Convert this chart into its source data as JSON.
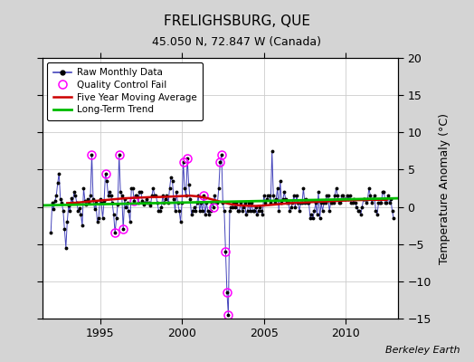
{
  "title": "FRELIGHSBURG, QUE",
  "subtitle": "45.050 N, 72.847 W (Canada)",
  "ylabel": "Temperature Anomaly (°C)",
  "credit": "Berkeley Earth",
  "xlim": [
    1991.5,
    2013.2
  ],
  "ylim": [
    -15,
    20
  ],
  "yticks": [
    -15,
    -10,
    -5,
    0,
    5,
    10,
    15,
    20
  ],
  "xticks": [
    1995,
    2000,
    2005,
    2010
  ],
  "bg_outer": "#d4d4d4",
  "bg_inner": "#ffffff",
  "grid_color": "#cccccc",
  "raw_color": "#4444bb",
  "moving_avg_color": "#cc0000",
  "trend_color": "#00bb00",
  "qc_color": "#ff00ff",
  "raw_data": [
    [
      1992.0,
      -3.5
    ],
    [
      1992.083,
      0.5
    ],
    [
      1992.167,
      -0.3
    ],
    [
      1992.25,
      0.8
    ],
    [
      1992.333,
      1.5
    ],
    [
      1992.417,
      3.2
    ],
    [
      1992.5,
      4.5
    ],
    [
      1992.583,
      1.0
    ],
    [
      1992.667,
      0.5
    ],
    [
      1992.75,
      -0.5
    ],
    [
      1992.833,
      -3.0
    ],
    [
      1992.917,
      -5.5
    ],
    [
      1993.0,
      -2.0
    ],
    [
      1993.083,
      0.2
    ],
    [
      1993.167,
      -0.5
    ],
    [
      1993.25,
      1.2
    ],
    [
      1993.333,
      0.5
    ],
    [
      1993.417,
      2.0
    ],
    [
      1993.5,
      1.5
    ],
    [
      1993.583,
      0.5
    ],
    [
      1993.667,
      -0.5
    ],
    [
      1993.75,
      -0.2
    ],
    [
      1993.833,
      -1.0
    ],
    [
      1993.917,
      -2.5
    ],
    [
      1994.0,
      2.5
    ],
    [
      1994.083,
      0.8
    ],
    [
      1994.167,
      0.3
    ],
    [
      1994.25,
      1.0
    ],
    [
      1994.333,
      0.5
    ],
    [
      1994.417,
      1.5
    ],
    [
      1994.5,
      7.0
    ],
    [
      1994.583,
      1.0
    ],
    [
      1994.667,
      -0.3
    ],
    [
      1994.75,
      0.5
    ],
    [
      1994.833,
      -2.0
    ],
    [
      1994.917,
      -1.5
    ],
    [
      1995.0,
      1.0
    ],
    [
      1995.083,
      0.5
    ],
    [
      1995.167,
      -1.5
    ],
    [
      1995.25,
      0.8
    ],
    [
      1995.333,
      4.5
    ],
    [
      1995.417,
      3.5
    ],
    [
      1995.5,
      1.5
    ],
    [
      1995.583,
      2.0
    ],
    [
      1995.667,
      1.5
    ],
    [
      1995.75,
      0.5
    ],
    [
      1995.833,
      -1.0
    ],
    [
      1995.917,
      -3.5
    ],
    [
      1996.0,
      -1.5
    ],
    [
      1996.083,
      0.3
    ],
    [
      1996.167,
      7.0
    ],
    [
      1996.25,
      2.0
    ],
    [
      1996.333,
      1.5
    ],
    [
      1996.417,
      -3.0
    ],
    [
      1996.5,
      1.0
    ],
    [
      1996.583,
      0.0
    ],
    [
      1996.667,
      0.5
    ],
    [
      1996.75,
      -0.5
    ],
    [
      1996.833,
      -2.0
    ],
    [
      1996.917,
      2.5
    ],
    [
      1997.0,
      2.5
    ],
    [
      1997.083,
      0.8
    ],
    [
      1997.167,
      1.5
    ],
    [
      1997.25,
      1.5
    ],
    [
      1997.333,
      0.5
    ],
    [
      1997.417,
      2.0
    ],
    [
      1997.5,
      2.0
    ],
    [
      1997.583,
      0.8
    ],
    [
      1997.667,
      0.3
    ],
    [
      1997.75,
      0.5
    ],
    [
      1997.833,
      1.0
    ],
    [
      1997.917,
      0.5
    ],
    [
      1998.0,
      0.5
    ],
    [
      1998.083,
      0.2
    ],
    [
      1998.167,
      1.5
    ],
    [
      1998.25,
      2.5
    ],
    [
      1998.333,
      1.5
    ],
    [
      1998.417,
      1.5
    ],
    [
      1998.5,
      0.5
    ],
    [
      1998.583,
      -0.5
    ],
    [
      1998.667,
      -0.5
    ],
    [
      1998.75,
      0.0
    ],
    [
      1998.833,
      1.5
    ],
    [
      1998.917,
      0.5
    ],
    [
      1999.0,
      1.0
    ],
    [
      1999.083,
      1.5
    ],
    [
      1999.167,
      0.5
    ],
    [
      1999.25,
      2.5
    ],
    [
      1999.333,
      4.0
    ],
    [
      1999.417,
      3.5
    ],
    [
      1999.5,
      1.0
    ],
    [
      1999.583,
      -0.5
    ],
    [
      1999.667,
      2.0
    ],
    [
      1999.75,
      0.5
    ],
    [
      1999.833,
      -0.5
    ],
    [
      1999.917,
      -2.0
    ],
    [
      2000.0,
      0.5
    ],
    [
      2000.083,
      6.0
    ],
    [
      2000.167,
      2.5
    ],
    [
      2000.25,
      1.5
    ],
    [
      2000.333,
      6.5
    ],
    [
      2000.417,
      3.0
    ],
    [
      2000.5,
      1.0
    ],
    [
      2000.583,
      -1.0
    ],
    [
      2000.667,
      -0.5
    ],
    [
      2000.75,
      0.0
    ],
    [
      2000.833,
      -0.5
    ],
    [
      2000.917,
      0.5
    ],
    [
      2001.0,
      1.5
    ],
    [
      2001.083,
      -0.5
    ],
    [
      2001.167,
      0.5
    ],
    [
      2001.25,
      -0.5
    ],
    [
      2001.333,
      1.5
    ],
    [
      2001.417,
      -1.0
    ],
    [
      2001.5,
      0.5
    ],
    [
      2001.583,
      -0.5
    ],
    [
      2001.667,
      -1.0
    ],
    [
      2001.75,
      -0.5
    ],
    [
      2001.833,
      0.5
    ],
    [
      2001.917,
      0.0
    ],
    [
      2002.0,
      1.5
    ],
    [
      2002.083,
      0.5
    ],
    [
      2002.167,
      0.5
    ],
    [
      2002.25,
      2.5
    ],
    [
      2002.333,
      6.0
    ],
    [
      2002.417,
      7.0
    ],
    [
      2002.5,
      0.5
    ],
    [
      2002.583,
      -0.5
    ],
    [
      2002.667,
      -6.0
    ],
    [
      2002.75,
      -11.5
    ],
    [
      2002.833,
      -14.5
    ],
    [
      2002.917,
      -0.5
    ],
    [
      2003.0,
      0.0
    ],
    [
      2003.083,
      0.0
    ],
    [
      2003.167,
      0.5
    ],
    [
      2003.25,
      0.0
    ],
    [
      2003.333,
      0.5
    ],
    [
      2003.417,
      -0.5
    ],
    [
      2003.5,
      -0.5
    ],
    [
      2003.583,
      0.5
    ],
    [
      2003.667,
      -0.5
    ],
    [
      2003.75,
      0.0
    ],
    [
      2003.833,
      0.5
    ],
    [
      2003.917,
      -1.0
    ],
    [
      2004.0,
      -0.5
    ],
    [
      2004.083,
      0.5
    ],
    [
      2004.167,
      -0.5
    ],
    [
      2004.25,
      0.5
    ],
    [
      2004.333,
      -0.5
    ],
    [
      2004.417,
      -0.5
    ],
    [
      2004.5,
      0.0
    ],
    [
      2004.583,
      -1.0
    ],
    [
      2004.667,
      -0.5
    ],
    [
      2004.75,
      0.0
    ],
    [
      2004.833,
      -0.5
    ],
    [
      2004.917,
      -1.0
    ],
    [
      2005.0,
      1.5
    ],
    [
      2005.083,
      0.5
    ],
    [
      2005.167,
      1.0
    ],
    [
      2005.25,
      1.5
    ],
    [
      2005.333,
      1.5
    ],
    [
      2005.417,
      0.5
    ],
    [
      2005.5,
      7.5
    ],
    [
      2005.583,
      1.5
    ],
    [
      2005.667,
      0.5
    ],
    [
      2005.75,
      1.0
    ],
    [
      2005.833,
      2.5
    ],
    [
      2005.917,
      -0.5
    ],
    [
      2006.0,
      3.5
    ],
    [
      2006.083,
      0.5
    ],
    [
      2006.167,
      1.0
    ],
    [
      2006.25,
      2.0
    ],
    [
      2006.333,
      1.0
    ],
    [
      2006.417,
      0.5
    ],
    [
      2006.5,
      0.5
    ],
    [
      2006.583,
      -0.5
    ],
    [
      2006.667,
      0.0
    ],
    [
      2006.75,
      0.5
    ],
    [
      2006.833,
      1.5
    ],
    [
      2006.917,
      0.0
    ],
    [
      2007.0,
      1.5
    ],
    [
      2007.083,
      0.5
    ],
    [
      2007.167,
      -0.5
    ],
    [
      2007.25,
      0.5
    ],
    [
      2007.333,
      0.5
    ],
    [
      2007.417,
      2.5
    ],
    [
      2007.5,
      0.5
    ],
    [
      2007.583,
      1.0
    ],
    [
      2007.667,
      0.5
    ],
    [
      2007.75,
      0.5
    ],
    [
      2007.833,
      -1.5
    ],
    [
      2007.917,
      -1.0
    ],
    [
      2008.0,
      -1.5
    ],
    [
      2008.083,
      -0.5
    ],
    [
      2008.167,
      0.5
    ],
    [
      2008.25,
      -1.0
    ],
    [
      2008.333,
      2.0
    ],
    [
      2008.417,
      -1.5
    ],
    [
      2008.5,
      0.5
    ],
    [
      2008.583,
      -0.5
    ],
    [
      2008.667,
      0.5
    ],
    [
      2008.75,
      0.5
    ],
    [
      2008.833,
      1.5
    ],
    [
      2008.917,
      1.5
    ],
    [
      2009.0,
      -0.5
    ],
    [
      2009.083,
      0.5
    ],
    [
      2009.167,
      0.5
    ],
    [
      2009.25,
      0.5
    ],
    [
      2009.333,
      1.5
    ],
    [
      2009.417,
      2.5
    ],
    [
      2009.5,
      1.5
    ],
    [
      2009.583,
      0.5
    ],
    [
      2009.667,
      0.5
    ],
    [
      2009.75,
      1.5
    ],
    [
      2009.833,
      1.5
    ],
    [
      2009.917,
      1.0
    ],
    [
      2010.0,
      1.0
    ],
    [
      2010.083,
      1.5
    ],
    [
      2010.167,
      1.0
    ],
    [
      2010.25,
      1.5
    ],
    [
      2010.333,
      0.5
    ],
    [
      2010.417,
      0.5
    ],
    [
      2010.5,
      1.0
    ],
    [
      2010.583,
      0.5
    ],
    [
      2010.667,
      0.0
    ],
    [
      2010.75,
      -0.5
    ],
    [
      2010.833,
      -0.5
    ],
    [
      2010.917,
      -1.0
    ],
    [
      2011.0,
      0.0
    ],
    [
      2011.083,
      1.0
    ],
    [
      2011.167,
      1.0
    ],
    [
      2011.25,
      0.5
    ],
    [
      2011.333,
      1.0
    ],
    [
      2011.417,
      2.5
    ],
    [
      2011.5,
      1.5
    ],
    [
      2011.583,
      0.5
    ],
    [
      2011.667,
      1.0
    ],
    [
      2011.75,
      1.5
    ],
    [
      2011.833,
      -0.5
    ],
    [
      2011.917,
      -1.0
    ],
    [
      2012.0,
      0.5
    ],
    [
      2012.083,
      0.5
    ],
    [
      2012.167,
      0.5
    ],
    [
      2012.25,
      2.0
    ],
    [
      2012.333,
      2.0
    ],
    [
      2012.417,
      0.5
    ],
    [
      2012.5,
      0.5
    ],
    [
      2012.583,
      1.5
    ],
    [
      2012.667,
      0.5
    ],
    [
      2012.75,
      1.0
    ],
    [
      2012.833,
      -0.5
    ],
    [
      2012.917,
      -1.5
    ]
  ],
  "qc_fail_points": [
    [
      1994.5,
      7.0
    ],
    [
      1995.333,
      4.5
    ],
    [
      1995.917,
      -3.5
    ],
    [
      1996.167,
      7.0
    ],
    [
      1996.417,
      -3.0
    ],
    [
      1997.083,
      0.8
    ],
    [
      2000.083,
      6.0
    ],
    [
      2000.333,
      6.5
    ],
    [
      2001.333,
      1.5
    ],
    [
      2001.917,
      0.0
    ],
    [
      2002.333,
      6.0
    ],
    [
      2002.417,
      7.0
    ],
    [
      2002.667,
      -6.0
    ],
    [
      2002.75,
      -11.5
    ],
    [
      2002.833,
      -14.5
    ]
  ],
  "moving_avg": [
    [
      1993.0,
      0.5
    ],
    [
      1993.5,
      0.55
    ],
    [
      1994.0,
      0.65
    ],
    [
      1994.5,
      0.75
    ],
    [
      1995.0,
      0.85
    ],
    [
      1995.5,
      0.95
    ],
    [
      1996.0,
      1.05
    ],
    [
      1996.5,
      1.15
    ],
    [
      1997.0,
      1.2
    ],
    [
      1997.5,
      1.25
    ],
    [
      1998.0,
      1.3
    ],
    [
      1998.5,
      1.32
    ],
    [
      1999.0,
      1.35
    ],
    [
      1999.5,
      1.4
    ],
    [
      2000.0,
      1.45
    ],
    [
      2000.5,
      1.5
    ],
    [
      2001.0,
      1.4
    ],
    [
      2001.5,
      1.2
    ],
    [
      2002.0,
      0.9
    ],
    [
      2002.5,
      0.6
    ],
    [
      2003.0,
      0.35
    ],
    [
      2003.5,
      0.2
    ],
    [
      2004.0,
      0.15
    ],
    [
      2004.5,
      0.12
    ],
    [
      2005.0,
      0.18
    ],
    [
      2005.5,
      0.28
    ],
    [
      2006.0,
      0.38
    ],
    [
      2006.5,
      0.48
    ],
    [
      2007.0,
      0.55
    ],
    [
      2007.5,
      0.6
    ],
    [
      2008.0,
      0.65
    ],
    [
      2008.5,
      0.7
    ],
    [
      2009.0,
      0.75
    ],
    [
      2009.5,
      0.8
    ],
    [
      2010.0,
      0.85
    ],
    [
      2010.5,
      0.9
    ],
    [
      2011.0,
      0.92
    ],
    [
      2011.5,
      0.95
    ],
    [
      2012.0,
      0.95
    ],
    [
      2012.5,
      0.95
    ]
  ],
  "trend_x": [
    1991.5,
    2013.2
  ],
  "trend_y": [
    0.2,
    1.15
  ]
}
